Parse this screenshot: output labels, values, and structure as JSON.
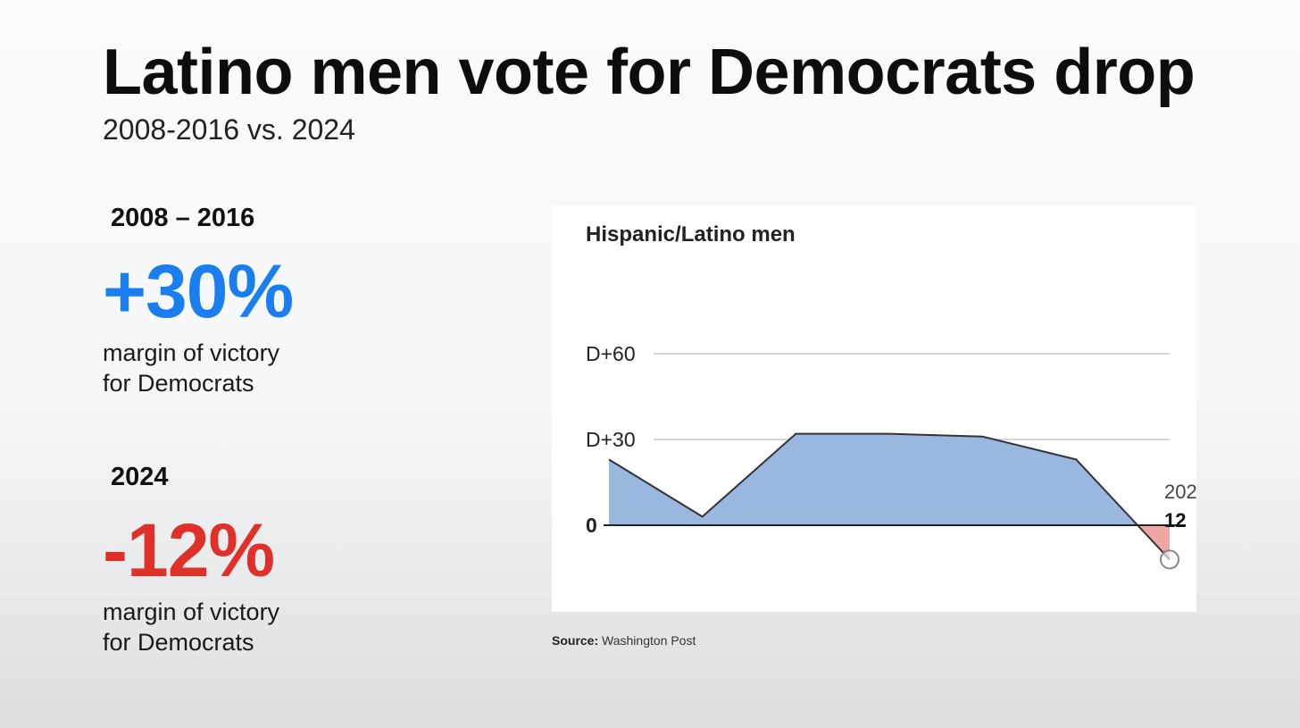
{
  "header": {
    "title": "Latino men vote for Democrats drop",
    "subtitle": "2008-2016 vs. 2024"
  },
  "stats": [
    {
      "period": "2008 – 2016",
      "value": "+30%",
      "color": "#1a7ef0",
      "desc_line1": "margin of victory",
      "desc_line2": "for Democrats"
    },
    {
      "period": "2024",
      "value": "-12%",
      "color": "#e0302a",
      "desc_line1": "margin of victory",
      "desc_line2": "for Democrats"
    }
  ],
  "source": {
    "label": "Source",
    "separator": ": ",
    "text": "Washington Post"
  },
  "colors": {
    "dem_fill": "#9ab8df",
    "rep_fill": "#f0a4a4",
    "line": "#333333",
    "grid": "#c8c8c8"
  },
  "chart_data": {
    "type": "area",
    "title": "Hispanic/Latino men",
    "y_ticks": [
      {
        "value": 60,
        "label": "D+60"
      },
      {
        "value": 30,
        "label": "D+30"
      },
      {
        "value": 0,
        "label": "0"
      }
    ],
    "ylim": [
      -12,
      60
    ],
    "xlim": [
      0,
      6
    ],
    "series": [
      {
        "x": [
          0,
          1,
          2,
          3,
          4,
          5,
          6
        ],
        "values": [
          23,
          3,
          32,
          32,
          31,
          23,
          -12
        ]
      }
    ],
    "annotation": {
      "year_text": "202",
      "value_text": "12"
    }
  }
}
